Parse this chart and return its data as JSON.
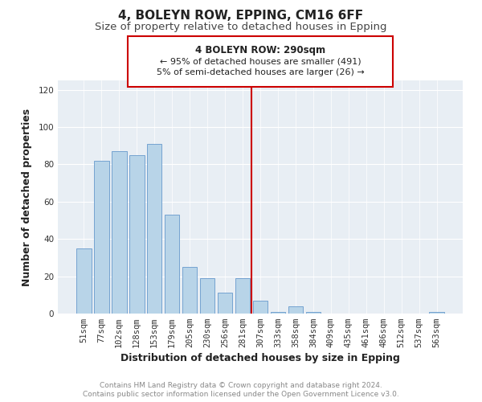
{
  "title": "4, BOLEYN ROW, EPPING, CM16 6FF",
  "subtitle": "Size of property relative to detached houses in Epping",
  "xlabel": "Distribution of detached houses by size in Epping",
  "ylabel": "Number of detached properties",
  "categories": [
    "51sqm",
    "77sqm",
    "102sqm",
    "128sqm",
    "153sqm",
    "179sqm",
    "205sqm",
    "230sqm",
    "256sqm",
    "281sqm",
    "307sqm",
    "333sqm",
    "358sqm",
    "384sqm",
    "409sqm",
    "435sqm",
    "461sqm",
    "486sqm",
    "512sqm",
    "537sqm",
    "563sqm"
  ],
  "values": [
    35,
    82,
    87,
    85,
    91,
    53,
    25,
    19,
    11,
    19,
    7,
    1,
    4,
    1,
    0,
    0,
    0,
    0,
    0,
    0,
    1
  ],
  "bar_color": "#b8d4e8",
  "bar_edge_color": "#6699cc",
  "vline_x_index": 9.5,
  "vline_color": "#cc0000",
  "ylim": [
    0,
    125
  ],
  "yticks": [
    0,
    20,
    40,
    60,
    80,
    100,
    120
  ],
  "annotation_title": "4 BOLEYN ROW: 290sqm",
  "annotation_line1": "← 95% of detached houses are smaller (491)",
  "annotation_line2": "5% of semi-detached houses are larger (26) →",
  "footer_line1": "Contains HM Land Registry data © Crown copyright and database right 2024.",
  "footer_line2": "Contains public sector information licensed under the Open Government Licence v3.0.",
  "background_color": "#ffffff",
  "plot_background_color": "#e8eef4",
  "title_fontsize": 11,
  "subtitle_fontsize": 9.5,
  "axis_label_fontsize": 9,
  "tick_fontsize": 7.5,
  "footer_fontsize": 6.5
}
